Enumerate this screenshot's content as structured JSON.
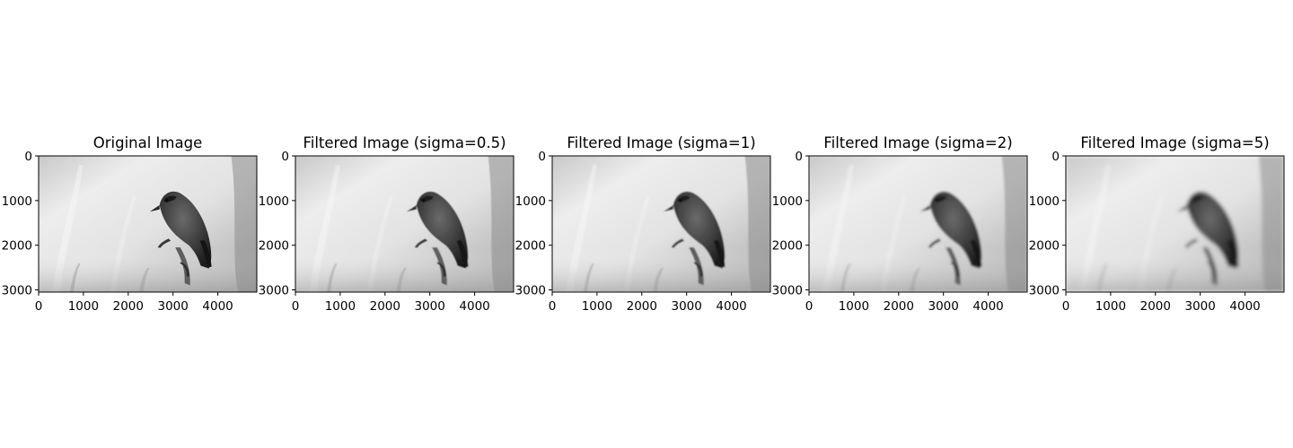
{
  "chart_data": [
    {
      "type": "image",
      "title": "Original Image",
      "blur": 0,
      "xlim": [
        0,
        4870
      ],
      "ylim": [
        3050,
        0
      ],
      "xticks": [
        0,
        1000,
        2000,
        3000,
        4000
      ],
      "yticks": [
        0,
        1000,
        2000,
        3000
      ]
    },
    {
      "type": "image",
      "title": "Filtered Image (sigma=0.5)",
      "blur": 0.5,
      "xlim": [
        0,
        4870
      ],
      "ylim": [
        3050,
        0
      ],
      "xticks": [
        0,
        1000,
        2000,
        3000,
        4000
      ],
      "yticks": [
        0,
        1000,
        2000,
        3000
      ]
    },
    {
      "type": "image",
      "title": "Filtered Image (sigma=1)",
      "blur": 1,
      "xlim": [
        0,
        4870
      ],
      "ylim": [
        3050,
        0
      ],
      "xticks": [
        0,
        1000,
        2000,
        3000,
        4000
      ],
      "yticks": [
        0,
        1000,
        2000,
        3000
      ]
    },
    {
      "type": "image",
      "title": "Filtered Image (sigma=2)",
      "blur": 2,
      "xlim": [
        0,
        4870
      ],
      "ylim": [
        3050,
        0
      ],
      "xticks": [
        0,
        1000,
        2000,
        3000,
        4000
      ],
      "yticks": [
        0,
        1000,
        2000,
        3000
      ]
    },
    {
      "type": "image",
      "title": "Filtered Image (sigma=5)",
      "blur": 5,
      "xlim": [
        0,
        4870
      ],
      "ylim": [
        3050,
        0
      ],
      "xticks": [
        0,
        1000,
        2000,
        3000,
        4000
      ],
      "yticks": [
        0,
        1000,
        2000,
        3000
      ]
    }
  ],
  "colors": {
    "background_light": "#f4f4f4",
    "background_mid": "#cfcfcf",
    "bird_dark": "#262626",
    "bird_mid": "#5a5a5a"
  }
}
